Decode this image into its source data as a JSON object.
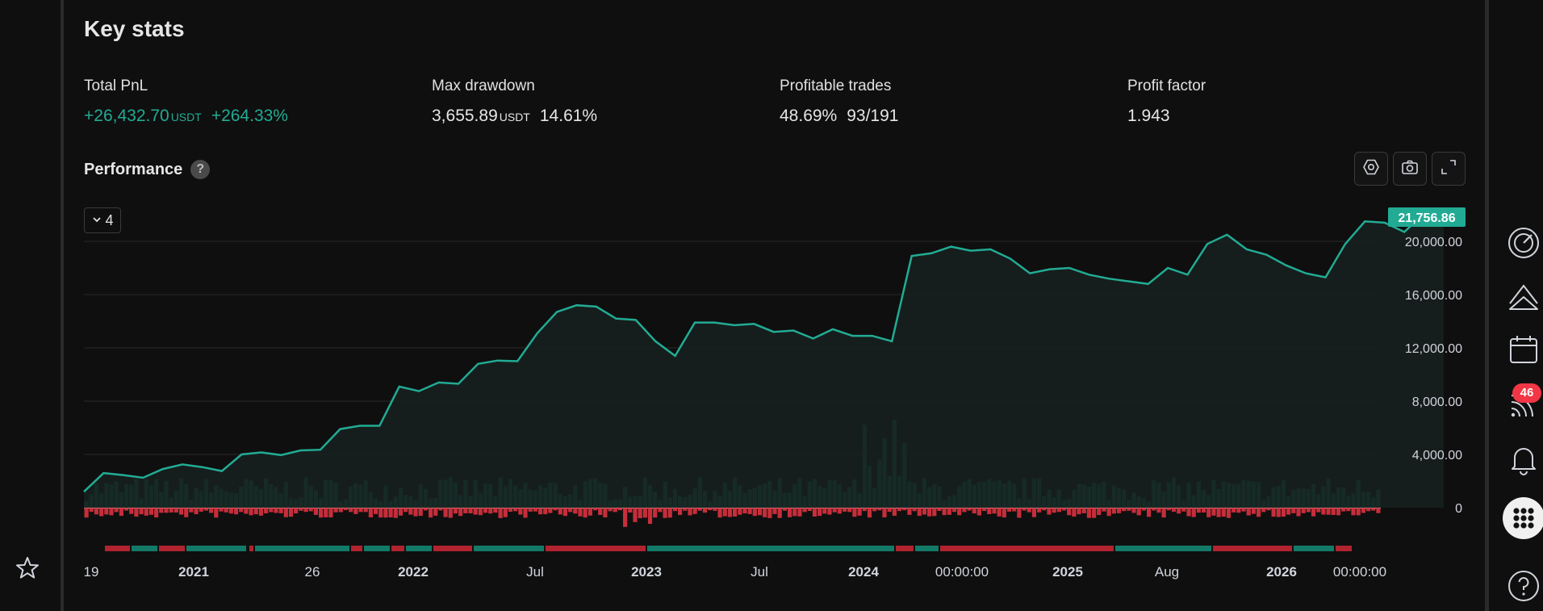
{
  "header": {
    "title": "Key stats"
  },
  "stats": [
    {
      "label": "Total PnL",
      "value": "+26,432.70",
      "unit": "USDT",
      "extra": "+264.33%",
      "positive": true
    },
    {
      "label": "Max drawdown",
      "value": "3,655.89",
      "unit": "USDT",
      "extra": "14.61%",
      "positive": false
    },
    {
      "label": "Profitable trades",
      "value": "48.69%",
      "unit": "",
      "extra": "93/191",
      "positive": false
    },
    {
      "label": "Profit factor",
      "value": "1.943",
      "unit": "",
      "extra": "",
      "positive": false
    }
  ],
  "performance": {
    "title": "Performance",
    "help_icon": "?",
    "dropdown_value": "4",
    "toolbar": [
      "settings-icon",
      "camera-icon",
      "fullscreen-icon"
    ]
  },
  "chart_data": {
    "type": "line",
    "current_value_label": "21,756.86",
    "y_ticks": [
      "20,000.00",
      "16,000.00",
      "12,000.00",
      "8,000.00",
      "4,000.00",
      "0"
    ],
    "x_ticks": [
      "19",
      "2021",
      "26",
      "2022",
      "Jul",
      "2023",
      "Jul",
      "2024",
      "00:00:00",
      "2025",
      "Aug",
      "2026",
      "00:00:00"
    ],
    "ylim": [
      -2000,
      21800
    ],
    "series": [
      {
        "values": [
          1200,
          2600,
          2450,
          2250,
          2900,
          3250,
          3050,
          2750,
          4000,
          4150,
          3950,
          4300,
          4350,
          5900,
          6150,
          6150,
          9100,
          8750,
          9400,
          9300,
          10800,
          11050,
          11000,
          13100,
          14700,
          15200,
          15100,
          14200,
          14100,
          12500,
          11400,
          13900,
          13900,
          13700,
          13800,
          13200,
          13300,
          12700,
          13400,
          12900,
          12900,
          12500,
          18900,
          19100,
          19600,
          19300,
          19400,
          18700,
          17600,
          17900,
          18000,
          17500,
          17200,
          17000,
          16800,
          18000,
          17500,
          19800,
          20500,
          19400,
          19000,
          18200,
          17600,
          17300,
          19800,
          21500,
          21400,
          20700,
          22100,
          21756.86
        ]
      }
    ],
    "bars": {
      "bar_count": 260,
      "pos_color": "#22ab94",
      "neg_color": "#f23645"
    },
    "colors": {
      "line": "#22ab94",
      "fill": "#16201e",
      "grid": "#2a2a2a",
      "axis_text": "#d1d4dc"
    }
  },
  "right_rail": {
    "icons": [
      "gauge-icon",
      "chart-upload-icon",
      "calendar-icon",
      "feed-icon",
      "bell-icon",
      "apps-icon",
      "help-icon"
    ],
    "feed_badge": "46"
  },
  "left_rail": {
    "star_icon": "star-icon"
  }
}
